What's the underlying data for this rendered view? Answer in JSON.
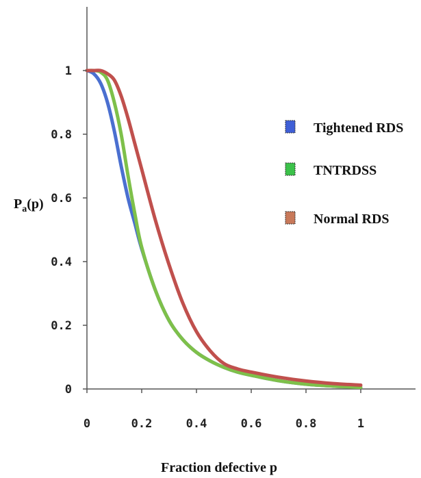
{
  "chart_data": {
    "type": "line",
    "title": "",
    "xlabel": "Fraction defective p",
    "ylabel_main": "P",
    "ylabel_sub": "a",
    "ylabel_tail": "(p)",
    "xlim": [
      0,
      1.2
    ],
    "ylim": [
      0,
      1.2
    ],
    "x_ticks": [
      "0",
      "0.2",
      "0.4",
      "0.6",
      "0.8",
      "1"
    ],
    "x_tick_values": [
      0,
      0.2,
      0.4,
      0.6,
      0.8,
      1
    ],
    "y_ticks": [
      "0",
      "0.2",
      "0.4",
      "0.6",
      "0.8",
      "1"
    ],
    "y_tick_values": [
      0,
      0.2,
      0.4,
      0.6,
      0.8,
      1
    ],
    "grid": false,
    "legend_position": "right",
    "x": [
      0,
      0.025,
      0.05,
      0.075,
      0.1,
      0.125,
      0.15,
      0.175,
      0.2,
      0.25,
      0.3,
      0.35,
      0.4,
      0.45,
      0.5,
      0.55,
      0.6,
      0.7,
      0.8,
      0.9,
      1.0
    ],
    "series": [
      {
        "name": "Tightened RDS",
        "color": "#4a6fd0",
        "values": [
          1.0,
          0.99,
          0.96,
          0.9,
          0.81,
          0.7,
          0.6,
          0.52,
          0.44,
          0.31,
          0.215,
          0.155,
          0.115,
          0.088,
          0.068,
          0.053,
          0.043,
          0.026,
          0.015,
          0.009,
          0.005
        ]
      },
      {
        "name": "TNTRDSS",
        "color": "#7ec04a",
        "values": [
          1.0,
          1.0,
          0.995,
          0.97,
          0.9,
          0.8,
          0.67,
          0.55,
          0.445,
          0.31,
          0.215,
          0.155,
          0.115,
          0.088,
          0.068,
          0.053,
          0.043,
          0.026,
          0.015,
          0.009,
          0.005
        ]
      },
      {
        "name": "Normal RDS",
        "color": "#c0504d",
        "values": [
          1.0,
          1.0,
          1.0,
          0.99,
          0.97,
          0.92,
          0.85,
          0.77,
          0.69,
          0.53,
          0.39,
          0.27,
          0.18,
          0.12,
          0.08,
          0.063,
          0.053,
          0.037,
          0.025,
          0.017,
          0.012
        ]
      }
    ],
    "legend_swatch_colors": [
      "#3f5fd6",
      "#3cc24a",
      "#c8795a"
    ]
  }
}
